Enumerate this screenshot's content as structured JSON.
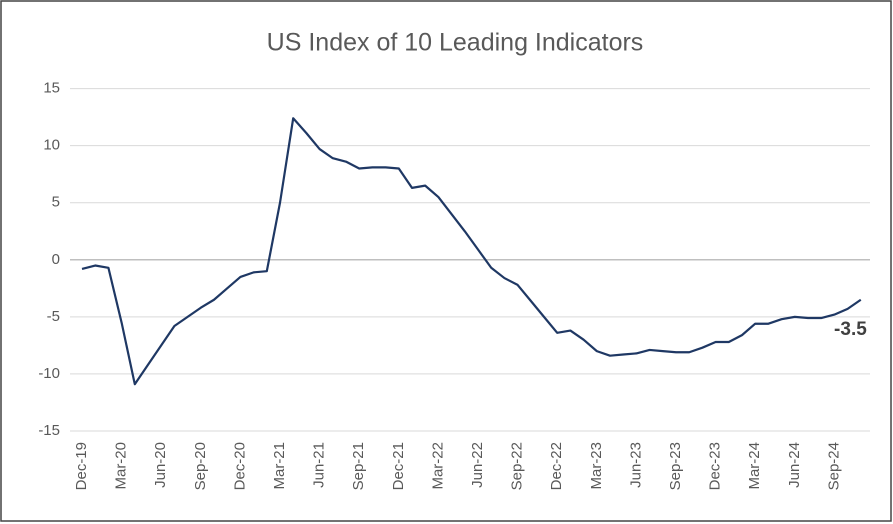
{
  "chart_data": {
    "type": "line",
    "title": "US Index of 10 Leading Indicators",
    "categories": [
      "Dec-19",
      null,
      null,
      "Mar-20",
      null,
      null,
      "Jun-20",
      null,
      null,
      "Sep-20",
      null,
      null,
      "Dec-20",
      null,
      null,
      "Mar-21",
      null,
      null,
      "Jun-21",
      null,
      null,
      "Sep-21",
      null,
      null,
      "Dec-21",
      null,
      null,
      "Mar-22",
      null,
      null,
      "Jun-22",
      null,
      null,
      "Sep-22",
      null,
      null,
      "Dec-22",
      null,
      null,
      "Mar-23",
      null,
      null,
      "Jun-23",
      null,
      null,
      "Sep-23",
      null,
      null,
      "Dec-23",
      null,
      null,
      "Mar-24",
      null,
      null,
      "Jun-24",
      null,
      null,
      "Sep-24",
      null,
      null
    ],
    "series": [
      {
        "name": "US Index of 10 Leading Indicators",
        "color": "#1f3864",
        "values": [
          -0.8,
          -0.5,
          -0.7,
          -5.5,
          -10.9,
          -9.2,
          -7.5,
          -5.8,
          -5.0,
          -4.2,
          -3.5,
          -2.5,
          -1.5,
          -1.1,
          -1.0,
          5.0,
          12.4,
          11.1,
          9.7,
          8.9,
          8.6,
          8.0,
          8.1,
          8.1,
          8.0,
          6.3,
          6.5,
          5.5,
          4.0,
          2.5,
          0.9,
          -0.7,
          -1.6,
          -2.2,
          -3.6,
          -5.0,
          -6.4,
          -6.2,
          -7.0,
          -8.0,
          -8.4,
          -8.3,
          -8.2,
          -7.9,
          -8.0,
          -8.1,
          -8.1,
          -7.7,
          -7.2,
          -7.2,
          -6.6,
          -5.6,
          -5.6,
          -5.2,
          -5.0,
          -5.1,
          -5.1,
          -4.8,
          -4.3,
          -3.5
        ]
      }
    ],
    "ylim": [
      -15,
      15
    ],
    "yticks": [
      -15,
      -10,
      -5,
      0,
      5,
      10,
      15
    ],
    "grid": true
  }
}
